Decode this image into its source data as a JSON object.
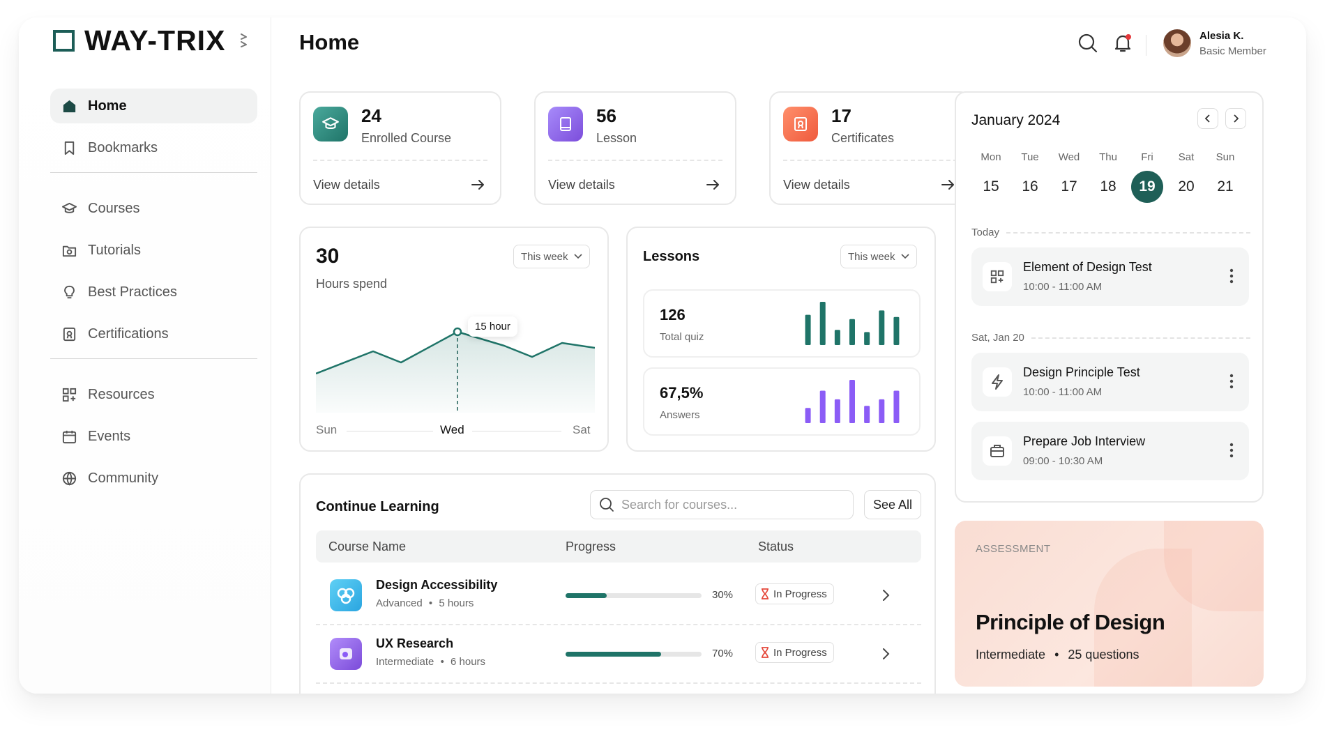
{
  "brand": {
    "name": "WAY-TRIX"
  },
  "sidebar": {
    "items": [
      {
        "label": "Home",
        "icon": "home-icon",
        "active": true
      },
      {
        "label": "Bookmarks",
        "icon": "bookmark-icon"
      },
      {
        "label": "Courses",
        "icon": "graduation-cap-icon"
      },
      {
        "label": "Tutorials",
        "icon": "video-folder-icon"
      },
      {
        "label": "Best Practices",
        "icon": "lightbulb-icon"
      },
      {
        "label": "Certifications",
        "icon": "certificate-icon"
      },
      {
        "label": "Resources",
        "icon": "grid-plus-icon"
      },
      {
        "label": "Events",
        "icon": "calendar-icon"
      },
      {
        "label": "Community",
        "icon": "globe-icon"
      }
    ]
  },
  "header": {
    "title": "Home",
    "user": {
      "name": "Alesia K.",
      "role": "Basic Member"
    }
  },
  "stats": [
    {
      "value": "24",
      "label": "Enrolled Course",
      "link": "View details",
      "icon": "graduation-cap-icon",
      "color": "#2f8f83"
    },
    {
      "value": "56",
      "label": "Lesson",
      "link": "View details",
      "icon": "book-icon",
      "color": "#8b5cf6"
    },
    {
      "value": "17",
      "label": "Certificates",
      "link": "View details",
      "icon": "certificate-icon",
      "color": "#f26b4f"
    }
  ],
  "hours": {
    "value": "30",
    "label": "Hours spend",
    "filter": "This week",
    "tooltip": "15 hour",
    "axis": {
      "start": "Sun",
      "mid": "Wed",
      "end": "Sat"
    }
  },
  "lessons": {
    "title": "Lessons",
    "filter": "This week",
    "quiz": {
      "value": "126",
      "label": "Total quiz",
      "color": "#1f7468",
      "bars": [
        0.7,
        1.0,
        0.35,
        0.6,
        0.3,
        0.8,
        0.65
      ]
    },
    "answers": {
      "value": "67,5%",
      "label": "Answers",
      "color": "#8b5cf6",
      "bars": [
        0.35,
        0.75,
        0.55,
        1.0,
        0.4,
        0.55,
        0.75
      ]
    }
  },
  "learning": {
    "title": "Continue Learning",
    "search_placeholder": "Search for courses...",
    "see_all": "See All",
    "columns": [
      "Course Name",
      "Progress",
      "Status"
    ],
    "rows": [
      {
        "name": "Design Accessibility",
        "level": "Advanced",
        "duration": "5 hours",
        "progress": 0.3,
        "progress_label": "30%",
        "status": "In Progress"
      },
      {
        "name": "UX Research",
        "level": "Intermediate",
        "duration": "6 hours",
        "progress": 0.7,
        "progress_label": "70%",
        "status": "In Progress"
      }
    ]
  },
  "calendar": {
    "title": "January 2024",
    "days": [
      {
        "name": "Mon",
        "num": "15"
      },
      {
        "name": "Tue",
        "num": "16"
      },
      {
        "name": "Wed",
        "num": "17"
      },
      {
        "name": "Thu",
        "num": "18"
      },
      {
        "name": "Fri",
        "num": "19",
        "selected": true
      },
      {
        "name": "Sat",
        "num": "20"
      },
      {
        "name": "Sun",
        "num": "21"
      }
    ],
    "today_label": "Today",
    "later_label": "Sat, Jan 20",
    "events": [
      {
        "title": "Element of Design Test",
        "time": "10:00 - 11:00 AM",
        "icon": "grid-plus-icon"
      },
      {
        "title": "Design Principle Test",
        "time": "10:00 - 11:00 AM",
        "icon": "bolt-icon"
      },
      {
        "title": "Prepare Job Interview",
        "time": "09:00 - 10:30 AM",
        "icon": "briefcase-icon"
      }
    ]
  },
  "assessment": {
    "tag": "ASSESSMENT",
    "title": "Principle of Design",
    "level": "Intermediate",
    "questions": "25 questions"
  },
  "colors": {
    "accent": "#1f5f57",
    "purple": "#8b5cf6",
    "orange": "#f26b4f"
  }
}
